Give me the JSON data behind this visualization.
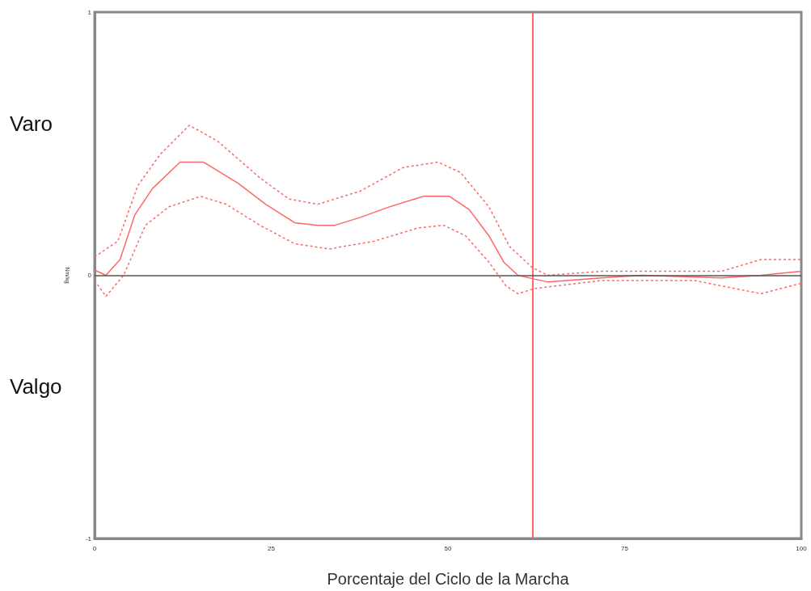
{
  "chart_data": {
    "type": "line",
    "xlabel": "Porcentaje del Ciclo de la Marcha",
    "ylabel": "Nm/kg",
    "annotations": [
      "Varo",
      "Valgo"
    ],
    "xlim": [
      0,
      100
    ],
    "xticks": [
      0,
      25,
      50,
      75,
      100
    ],
    "ylim": [
      -1,
      1
    ],
    "yticks": [
      -1,
      0,
      1
    ],
    "grid": false,
    "marker": "none",
    "series": [
      {
        "color": "#ff6666",
        "line_style": "solid",
        "x": [
          0,
          1.6,
          3.6,
          5.7,
          8.2,
          12.1,
          15.4,
          20.3,
          24.2,
          28.3,
          31.6,
          34,
          37.6,
          41.7,
          46.5,
          50.2,
          53,
          55.8,
          57.9,
          59.9,
          62.3,
          64.1,
          71.7,
          77.4,
          88.7,
          94.3,
          100
        ],
        "values": [
          0.02,
          0.0,
          0.06,
          0.23,
          0.33,
          0.43,
          0.43,
          0.35,
          0.27,
          0.2,
          0.19,
          0.19,
          0.22,
          0.26,
          0.3,
          0.3,
          0.25,
          0.15,
          0.05,
          0.0,
          -0.015,
          -0.025,
          -0.01,
          0.0,
          -0.01,
          0.0,
          0.015
        ]
      },
      {
        "color": "#ff6666",
        "line_style": "dotted",
        "x": [
          0,
          3.3,
          6.1,
          9.3,
          13.4,
          17.4,
          23.4,
          27.5,
          31.6,
          37.6,
          43.7,
          48.6,
          51.8,
          55.8,
          58.7,
          61.9,
          64.1,
          71.7,
          88.7,
          94.3,
          100
        ],
        "values": [
          0.07,
          0.13,
          0.34,
          0.46,
          0.57,
          0.51,
          0.37,
          0.29,
          0.27,
          0.32,
          0.41,
          0.43,
          0.39,
          0.26,
          0.11,
          0.03,
          0.0,
          0.015,
          0.015,
          0.06,
          0.06
        ]
      },
      {
        "color": "#ff6666",
        "line_style": "dotted",
        "x": [
          0,
          1.6,
          4.1,
          7.2,
          10.5,
          15,
          18.6,
          23.4,
          28.3,
          33.2,
          39.6,
          45.8,
          49.4,
          52.5,
          55.8,
          58.2,
          59.9,
          62.3,
          71.7,
          84.9,
          94.3,
          100
        ],
        "values": [
          -0.02,
          -0.08,
          0.0,
          0.19,
          0.26,
          0.3,
          0.27,
          0.19,
          0.12,
          0.1,
          0.13,
          0.18,
          0.19,
          0.15,
          0.05,
          -0.04,
          -0.07,
          -0.05,
          -0.02,
          -0.02,
          -0.07,
          -0.03
        ]
      }
    ],
    "ref_lines": [
      {
        "axis": "x",
        "value": 62,
        "color": "#ff6666",
        "line_style": "solid"
      },
      {
        "axis": "y",
        "value": 0,
        "color": "#555555",
        "line_style": "solid"
      }
    ]
  }
}
